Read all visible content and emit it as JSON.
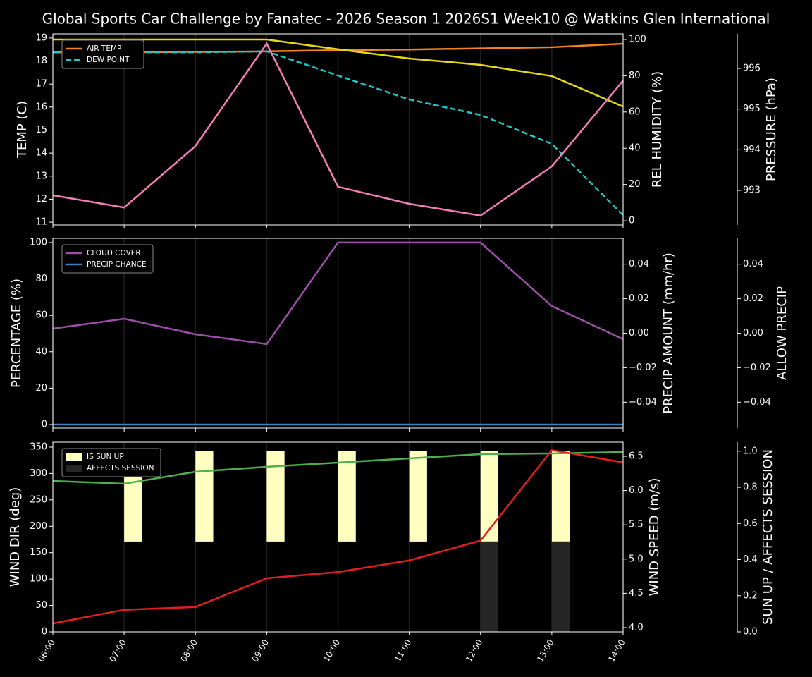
{
  "chart_data": [
    {
      "type": "line",
      "title": "Global Sports Car Challenge by Fanatec - 2026 Season 1 2026S1 Week10 @ Watkins Glen International",
      "categories": [
        "06:00",
        "07:00",
        "08:00",
        "09:00",
        "10:00",
        "11:00",
        "12:00",
        "13:00",
        "14:00"
      ],
      "ylabel": "TEMP (C)",
      "y2label": "REL HUMIDITY (%)",
      "y3label": "PRESSURE (hPa)",
      "label_colors": {
        "y": "#ffffff",
        "y2": "#e6d81e",
        "y3": "#f07fb4"
      },
      "ylim": [
        10.88,
        19.18
      ],
      "yticks": [
        11,
        12,
        13,
        14,
        15,
        16,
        17,
        18,
        19
      ],
      "y2lim": [
        -2.3,
        103.1
      ],
      "y2ticks": [
        0,
        20,
        40,
        60,
        80,
        100
      ],
      "y3lim": [
        992.15,
        996.85
      ],
      "y3ticks": [
        993,
        994,
        995,
        996
      ],
      "grid": true,
      "legend": "upper left",
      "series": [
        {
          "name": "AIR TEMP",
          "color": "#f5841f",
          "axis": "y",
          "values": [
            18.38,
            18.38,
            18.4,
            18.42,
            18.47,
            18.5,
            18.55,
            18.6,
            18.75
          ]
        },
        {
          "name": "DEW POINT",
          "color": "#1fc8c8",
          "axis": "y",
          "dash": true,
          "values": [
            18.38,
            18.38,
            18.38,
            18.42,
            17.37,
            16.33,
            15.66,
            14.4,
            11.3
          ]
        },
        {
          "color": "#e6d81e",
          "axis": "y2",
          "values": [
            100,
            100,
            100,
            100,
            94.6,
            89.5,
            86,
            79.8,
            63
          ]
        },
        {
          "color": "#f07fb4",
          "axis": "y3",
          "values": [
            992.88,
            992.58,
            994.09,
            996.61,
            993.09,
            992.67,
            992.38,
            993.59,
            995.7
          ]
        }
      ]
    },
    {
      "type": "line",
      "categories": [
        "06:00",
        "07:00",
        "08:00",
        "09:00",
        "10:00",
        "11:00",
        "12:00",
        "13:00",
        "14:00"
      ],
      "ylabel": "PERCENTAGE (%)",
      "y2label": "PRECIP AMOUNT (mm/hr)",
      "y3label": "ALLOW PRECIP",
      "label_colors": {
        "y": "#ffffff",
        "y2": "#a0522d",
        "y3": "#ffffff"
      },
      "ylim": [
        -1.94,
        102.3
      ],
      "yticks": [
        0,
        20,
        40,
        60,
        80,
        100
      ],
      "y2lim": [
        -0.055,
        0.055
      ],
      "y2ticks": [
        {
          "value": -0.04,
          "label": "−0.04"
        },
        {
          "value": -0.02,
          "label": "−0.02"
        },
        {
          "value": 0,
          "label": "0.00"
        },
        0.02,
        0.04
      ],
      "y3lim": [
        -0.055,
        0.055
      ],
      "y3ticks": [
        {
          "value": -0.04,
          "label": "−0.04"
        },
        {
          "value": -0.02,
          "label": "−0.02"
        },
        {
          "value": 0,
          "label": "0.00"
        },
        0.02,
        0.04
      ],
      "grid": true,
      "legend": "upper left",
      "series": [
        {
          "name": "CLOUD COVER",
          "color": "#9b4fa8",
          "axis": "y",
          "values": [
            52.7,
            58.1,
            49.6,
            44.2,
            100,
            100,
            100,
            65.1,
            46.9
          ]
        },
        {
          "name": "PRECIP CHANCE",
          "color": "#3f7fbf",
          "axis": "y",
          "values": [
            0,
            0,
            0,
            0,
            0,
            0,
            0,
            0,
            0
          ]
        }
      ]
    },
    {
      "type": "line",
      "categories": [
        "06:00",
        "07:00",
        "08:00",
        "09:00",
        "10:00",
        "11:00",
        "12:00",
        "13:00",
        "14:00"
      ],
      "ylabel": "WIND DIR (deg)",
      "y2label": "WIND SPEED (m/s)",
      "y3label": "SUN UP / AFFECTS SESSION",
      "label_colors": {
        "y": "#4caf50",
        "y2": "#e02020",
        "y3": "#ffffff"
      },
      "ylim": [
        0,
        359.3
      ],
      "yticks": [
        0,
        50,
        100,
        150,
        200,
        250,
        300,
        350
      ],
      "y2lim": [
        3.938,
        6.706
      ],
      "y2ticks": [
        {
          "value": 4,
          "label": "4.0"
        },
        4.5,
        {
          "value": 5,
          "label": "5.0"
        },
        5.5,
        {
          "value": 6,
          "label": "6.0"
        },
        6.5
      ],
      "y3lim": [
        0,
        1.05
      ],
      "y3ticks": [
        {
          "value": 0,
          "label": "0.0"
        },
        0.2,
        0.4,
        0.6,
        0.8,
        {
          "value": 1,
          "label": "1.0"
        }
      ],
      "grid": true,
      "legend": "upper left",
      "xticks_shown": true,
      "series": [
        {
          "name": "IS SUN UP",
          "type": "bar",
          "color": "#ffffc0",
          "axis": "y3",
          "values": [
            0,
            1,
            1,
            1,
            1,
            1,
            1,
            1,
            0
          ]
        },
        {
          "name": "AFFECTS SESSION",
          "type": "bar",
          "color": "#262626",
          "axis": "y3",
          "values": [
            0,
            0,
            0,
            0,
            0,
            0,
            1,
            1,
            0
          ]
        },
        {
          "color": "#4caf50",
          "axis": "y",
          "values": [
            285.9,
            280.5,
            303.2,
            312.6,
            320.6,
            328.6,
            336.6,
            338,
            340.6
          ]
        },
        {
          "color": "#e02020",
          "axis": "y2",
          "values": [
            4.06,
            4.26,
            4.3,
            4.72,
            4.81,
            4.98,
            5.27,
            6.59,
            6.41
          ]
        }
      ]
    }
  ]
}
